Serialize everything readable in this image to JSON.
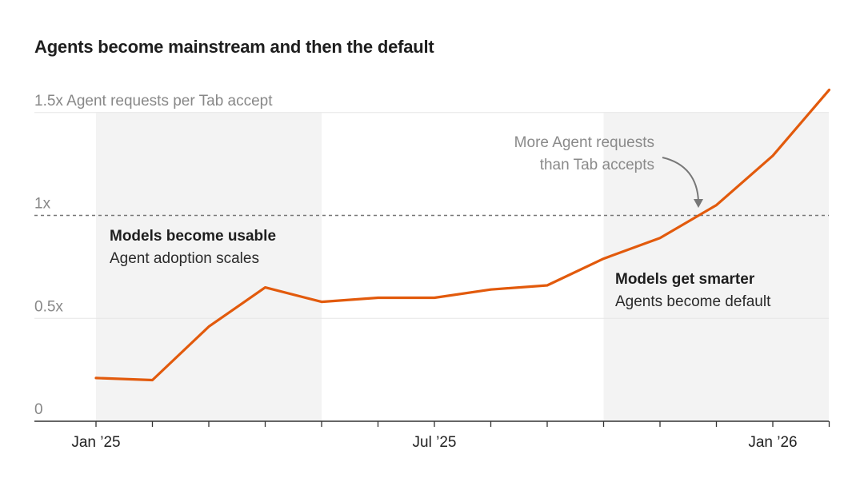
{
  "chart_data": {
    "type": "line",
    "title": "Agents become mainstream and then the default",
    "ylabel": "Agent requests per Tab accept",
    "ylim": [
      0,
      1.5
    ],
    "y_ticks": [
      "0",
      "0.5x",
      "1x",
      "1.5x"
    ],
    "y_tick_values": [
      0,
      0.5,
      1,
      1.5
    ],
    "x_tick_labels": [
      "Jan ’25",
      "Jul ’25",
      "Jan ’26"
    ],
    "x": [
      "2025-01",
      "2025-02",
      "2025-03",
      "2025-04",
      "2025-05",
      "2025-06",
      "2025-07",
      "2025-08",
      "2025-09",
      "2025-10",
      "2025-11",
      "2025-12",
      "2026-01",
      "2026-02"
    ],
    "series": [
      {
        "values": [
          0.21,
          0.2,
          0.46,
          0.65,
          0.58,
          0.6,
          0.6,
          0.64,
          0.66,
          0.79,
          0.89,
          1.05,
          1.29,
          1.61
        ],
        "color": "#e25a0c"
      }
    ],
    "reference_line": {
      "y": 1.0,
      "style": "dashed",
      "color": "#777777"
    },
    "shaded_regions": [
      {
        "from": "2025-01",
        "to": "2025-05",
        "color": "#f3f3f3"
      },
      {
        "from": "2025-10",
        "to": "2026-02",
        "color": "#f3f3f3"
      }
    ],
    "annotations": {
      "crossover_line1": "More Agent requests",
      "crossover_line2": "than Tab accepts",
      "left_bold": "Models become usable",
      "left_regular": "Agent adoption scales",
      "right_bold": "Models get smarter",
      "right_regular": "Agents become default"
    },
    "grid": true,
    "legend": "none"
  }
}
